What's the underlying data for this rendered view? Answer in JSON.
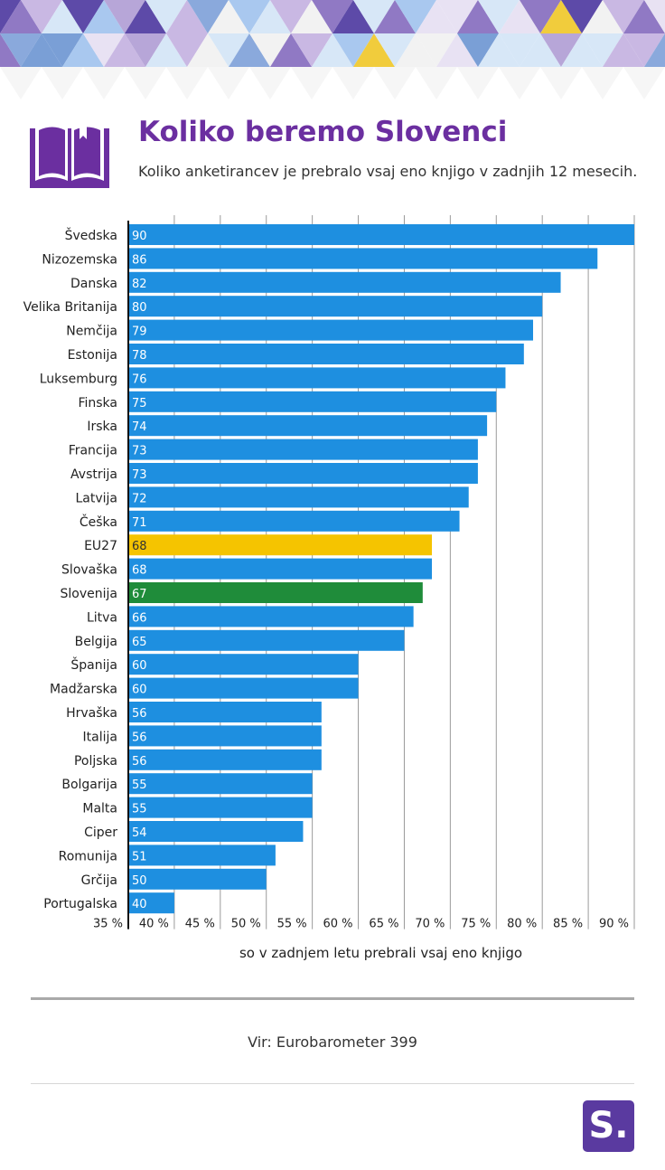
{
  "header": {
    "title": "Koliko beremo Slovenci",
    "subtitle": "Koliko anketirancev je prebralo vsaj eno knjigo v zadnjih 12 mesecih."
  },
  "colors": {
    "default_bar": "#1e8fe0",
    "eu_bar": "#f5c400",
    "slovenia_bar": "#1f8c3a",
    "title": "#6b2fa0",
    "logo": "#5a3aa0"
  },
  "chart_data": {
    "type": "bar",
    "orientation": "horizontal",
    "title": "Koliko beremo Slovenci",
    "xlabel": "so v zadnjem letu prebrali vsaj eno knjigo",
    "ylabel": "",
    "xlim": [
      35,
      90
    ],
    "x_ticks": [
      35,
      40,
      45,
      50,
      55,
      60,
      65,
      70,
      75,
      80,
      85,
      90
    ],
    "x_tick_labels": [
      "35 %",
      "40 %",
      "45 %",
      "50 %",
      "55 %",
      "60 %",
      "65 %",
      "70 %",
      "75 %",
      "80 %",
      "85 %",
      "90 %"
    ],
    "grid": true,
    "categories": [
      "Švedska",
      "Nizozemska",
      "Danska",
      "Velika Britanija",
      "Nemčija",
      "Estonija",
      "Luksemburg",
      "Finska",
      "Irska",
      "Francija",
      "Avstrija",
      "Latvija",
      "Češka",
      "EU27",
      "Slovaška",
      "Slovenija",
      "Litva",
      "Belgija",
      "Španija",
      "Madžarska",
      "Hrvaška",
      "Italija",
      "Poljska",
      "Bolgarija",
      "Malta",
      "Ciper",
      "Romunija",
      "Grčija",
      "Portugalska"
    ],
    "values": [
      90,
      86,
      82,
      80,
      79,
      78,
      76,
      75,
      74,
      73,
      73,
      72,
      71,
      68,
      68,
      67,
      66,
      65,
      60,
      60,
      56,
      56,
      56,
      55,
      55,
      54,
      51,
      50,
      40
    ],
    "highlights": {
      "EU27": "eu_bar",
      "Slovenija": "slovenia_bar"
    }
  },
  "source": "Vir: Eurobarometer 399",
  "logo_text": "S."
}
